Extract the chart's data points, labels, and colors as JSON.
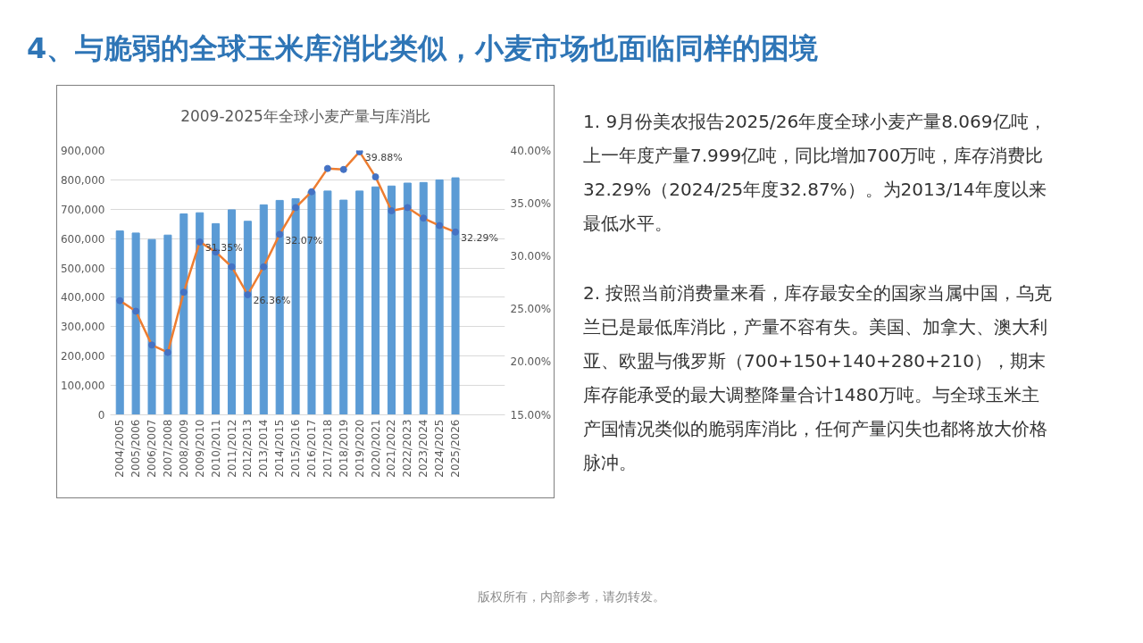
{
  "chart_data": {
    "type": "bar",
    "title": "4、与脆弱的全球玉米库消比类似，小麦市场也面临同样的困境",
    "subtitle": "2009-2025年全球小麦产量与库消比",
    "categories": [
      "2004/2005",
      "2005/2006",
      "2006/2007",
      "2007/2008",
      "2008/2009",
      "2009/2010",
      "2010/2011",
      "2011/2012",
      "2012/2013",
      "2013/2014",
      "2014/2015",
      "2015/2016",
      "2016/2017",
      "2017/2018",
      "2018/2019",
      "2019/2020",
      "2020/2021",
      "2021/2022",
      "2022/2023",
      "2023/2024",
      "2024/2025",
      "2025/2026"
    ],
    "series": [
      {
        "color": "#5b9bd5",
        "values": [
          626000,
          619000,
          597000,
          612000,
          684000,
          688000,
          651000,
          698000,
          659000,
          715000,
          730000,
          736000,
          760000,
          762000,
          731000,
          762000,
          776000,
          779000,
          789000,
          791000,
          800000,
          807000
        ]
      },
      {
        "type": "line",
        "axis": "y2",
        "color": "#ed7d31",
        "marker": "circle",
        "colors": [
          "#4472c4",
          "#4472c4",
          "#4472c4",
          "#4472c4",
          "#4472c4",
          "#4472c4",
          "#4472c4",
          "#4472c4",
          "#4472c4",
          "#4472c4",
          "#4472c4",
          "#4472c4",
          "#4472c4",
          "#4472c4",
          "#4472c4",
          "#4472c4",
          "#4472c4",
          "#4472c4",
          "#4472c4",
          "#4472c4",
          "#4472c4",
          "#4472c4"
        ],
        "values": [
          25.8,
          24.8,
          21.6,
          20.9,
          26.6,
          31.35,
          30.4,
          29.0,
          26.36,
          29.0,
          32.07,
          34.6,
          36.1,
          38.3,
          38.2,
          39.88,
          37.5,
          34.3,
          34.6,
          33.6,
          32.9,
          32.29
        ],
        "value_labels": [
          null,
          null,
          null,
          null,
          null,
          "31.35%",
          null,
          null,
          "26.36%",
          null,
          "32.07%",
          null,
          null,
          null,
          null,
          "39.88%",
          null,
          null,
          null,
          null,
          null,
          "32.29%"
        ]
      }
    ],
    "ylim": [
      0,
      900000
    ],
    "yticks": [
      0,
      {
        "value": 100000,
        "label": "100,000"
      },
      {
        "value": 200000,
        "label": "200,000"
      },
      {
        "value": 300000,
        "label": "300,000"
      },
      {
        "value": 400000,
        "label": "400,000"
      },
      {
        "value": 500000,
        "label": "500,000"
      },
      {
        "value": 600000,
        "label": "600,000"
      },
      {
        "value": 700000,
        "label": "700,000"
      },
      {
        "value": 800000,
        "label": "800,000"
      },
      {
        "value": 900000,
        "label": "900,000"
      }
    ],
    "y2lim": [
      15,
      40
    ],
    "y2ticks": [
      {
        "value": 15,
        "label": "15.00%"
      },
      {
        "value": 20,
        "label": "20.00%"
      },
      {
        "value": 25,
        "label": "25.00%"
      },
      {
        "value": 30,
        "label": "30.00%"
      },
      {
        "value": 35,
        "label": "35.00%"
      },
      {
        "value": 40,
        "label": "40.00%"
      }
    ],
    "grid": "y",
    "annotations": [
      "1.  9月份美农报告2025/26年度全球小麦产量8.069亿吨，上一年度产量7.999亿吨，同比增加700万吨，库存消费比32.29%（2024/25年度32.87%）。为2013/14年度以来最低水平。",
      "2.   按照当前消费量来看，库存最安全的国家当属中国，乌克兰已是最低库消比，产量不容有失。美国、加拿大、澳大利亚、欧盟与俄罗斯（700+150+140+280+210），期末库存能承受的最大调整降量合计1480万吨。与全球玉米主产国情况类似的脆弱库消比，任何产量闪失也都将放大价格脉冲。",
      "版权所有，内部参考，请勿转发。"
    ]
  }
}
